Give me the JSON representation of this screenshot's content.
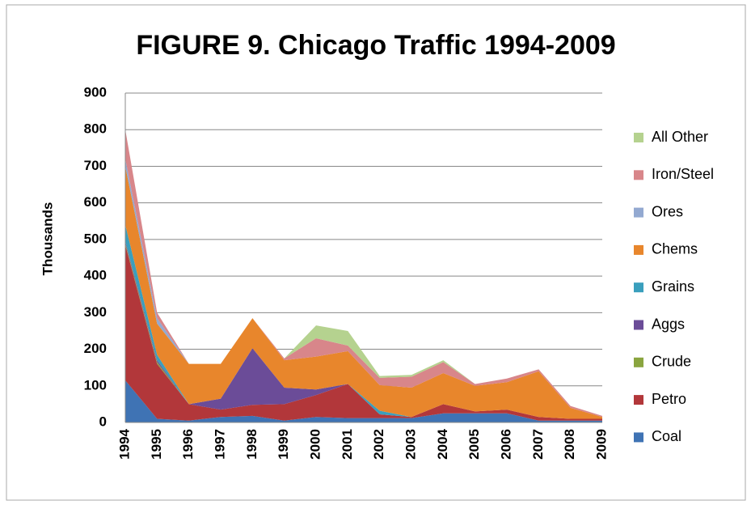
{
  "chart_data": {
    "type": "stacked_area",
    "title": "FIGURE 9. Chicago Traffic 1994-2009",
    "y_label": "Thousands",
    "categories": [
      "1994",
      "1995",
      "1996",
      "1997",
      "1998",
      "1999",
      "2000",
      "2001",
      "2002",
      "2003",
      "2004",
      "2005",
      "2006",
      "2007",
      "2008",
      "2009"
    ],
    "ylim": [
      0,
      900
    ],
    "yticks": [
      0,
      100,
      200,
      300,
      400,
      500,
      600,
      700,
      800,
      900
    ],
    "grid": true,
    "legend": "right",
    "series": [
      {
        "name": "Coal",
        "color": "#3f73b4",
        "values": [
          115,
          10,
          5,
          15,
          18,
          5,
          15,
          12,
          12,
          12,
          25,
          25,
          25,
          5,
          5,
          5
        ]
      },
      {
        "name": "Petro",
        "color": "#b2373a",
        "values": [
          370,
          150,
          45,
          20,
          30,
          45,
          60,
          93,
          10,
          3,
          25,
          5,
          10,
          10,
          5,
          5
        ]
      },
      {
        "name": "Crude",
        "color": "#8aa53f",
        "values": [
          5,
          5,
          0,
          0,
          0,
          0,
          0,
          0,
          0,
          0,
          0,
          0,
          0,
          0,
          0,
          0
        ]
      },
      {
        "name": "Aggs",
        "color": "#6b4c98",
        "values": [
          5,
          5,
          0,
          30,
          155,
          45,
          15,
          0,
          0,
          0,
          0,
          0,
          0,
          0,
          0,
          0
        ]
      },
      {
        "name": "Grains",
        "color": "#3a9fbd",
        "values": [
          45,
          15,
          0,
          0,
          0,
          0,
          0,
          0,
          10,
          0,
          0,
          0,
          0,
          0,
          0,
          0
        ]
      },
      {
        "name": "Chems",
        "color": "#e8862c",
        "values": [
          160,
          85,
          110,
          95,
          82,
          75,
          90,
          90,
          70,
          80,
          85,
          70,
          75,
          125,
          30,
          5
        ]
      },
      {
        "name": "Ores",
        "color": "#93a9d1",
        "values": [
          20,
          15,
          0,
          0,
          0,
          0,
          0,
          0,
          0,
          0,
          0,
          0,
          0,
          0,
          0,
          0
        ]
      },
      {
        "name": "Iron/Steel",
        "color": "#d8868a",
        "values": [
          80,
          15,
          0,
          0,
          0,
          5,
          50,
          15,
          20,
          30,
          30,
          5,
          10,
          5,
          5,
          3
        ]
      },
      {
        "name": "All Other",
        "color": "#b5d28f",
        "values": [
          0,
          0,
          0,
          0,
          0,
          0,
          35,
          40,
          5,
          5,
          5,
          0,
          0,
          0,
          0,
          0
        ]
      }
    ]
  }
}
